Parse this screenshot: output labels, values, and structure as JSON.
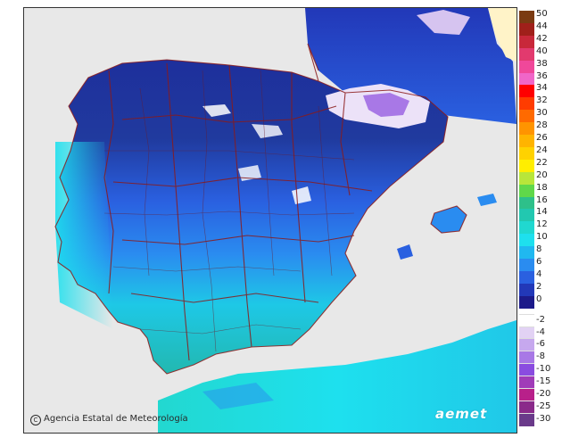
{
  "map": {
    "credit": "Agencia Estatal de Meteorología",
    "brand": "aemet",
    "sea_color": "#e8e8e8",
    "border_color": "#8b1a1a"
  },
  "legend": {
    "positive": [
      {
        "value": "50",
        "color": "#7a3a12"
      },
      {
        "value": "44",
        "color": "#a0201a"
      },
      {
        "value": "42",
        "color": "#c8283a"
      },
      {
        "value": "40",
        "color": "#e23a6e"
      },
      {
        "value": "38",
        "color": "#f0489a"
      },
      {
        "value": "36",
        "color": "#f066c8"
      },
      {
        "value": "34",
        "color": "#ff0000"
      },
      {
        "value": "32",
        "color": "#ff3c00"
      },
      {
        "value": "30",
        "color": "#ff6a00"
      },
      {
        "value": "28",
        "color": "#ff9400"
      },
      {
        "value": "26",
        "color": "#ffb400"
      },
      {
        "value": "24",
        "color": "#ffd200"
      },
      {
        "value": "22",
        "color": "#ffee00"
      },
      {
        "value": "20",
        "color": "#b8e63a"
      },
      {
        "value": "18",
        "color": "#60d84a"
      },
      {
        "value": "16",
        "color": "#2ec08a"
      },
      {
        "value": "14",
        "color": "#22c8b0"
      },
      {
        "value": "12",
        "color": "#20d8d0"
      },
      {
        "value": "10",
        "color": "#1ee0ee"
      },
      {
        "value": "8",
        "color": "#20b8f0"
      },
      {
        "value": "6",
        "color": "#2a8cf0"
      },
      {
        "value": "4",
        "color": "#2a60e0"
      },
      {
        "value": "2",
        "color": "#2238b8"
      },
      {
        "value": "0",
        "color": "#1c1a8a"
      }
    ],
    "negative": [
      {
        "value": "-2",
        "color": "#ffffff"
      },
      {
        "value": "-4",
        "color": "#e2d2f4"
      },
      {
        "value": "-6",
        "color": "#c6a8ee"
      },
      {
        "value": "-8",
        "color": "#a878e6"
      },
      {
        "value": "-10",
        "color": "#8a4ce0"
      },
      {
        "value": "-15",
        "color": "#a03cb8"
      },
      {
        "value": "-20",
        "color": "#b8208a"
      },
      {
        "value": "-25",
        "color": "#8a2a8a"
      },
      {
        "value": "-30",
        "color": "#6a3a8a"
      }
    ]
  }
}
